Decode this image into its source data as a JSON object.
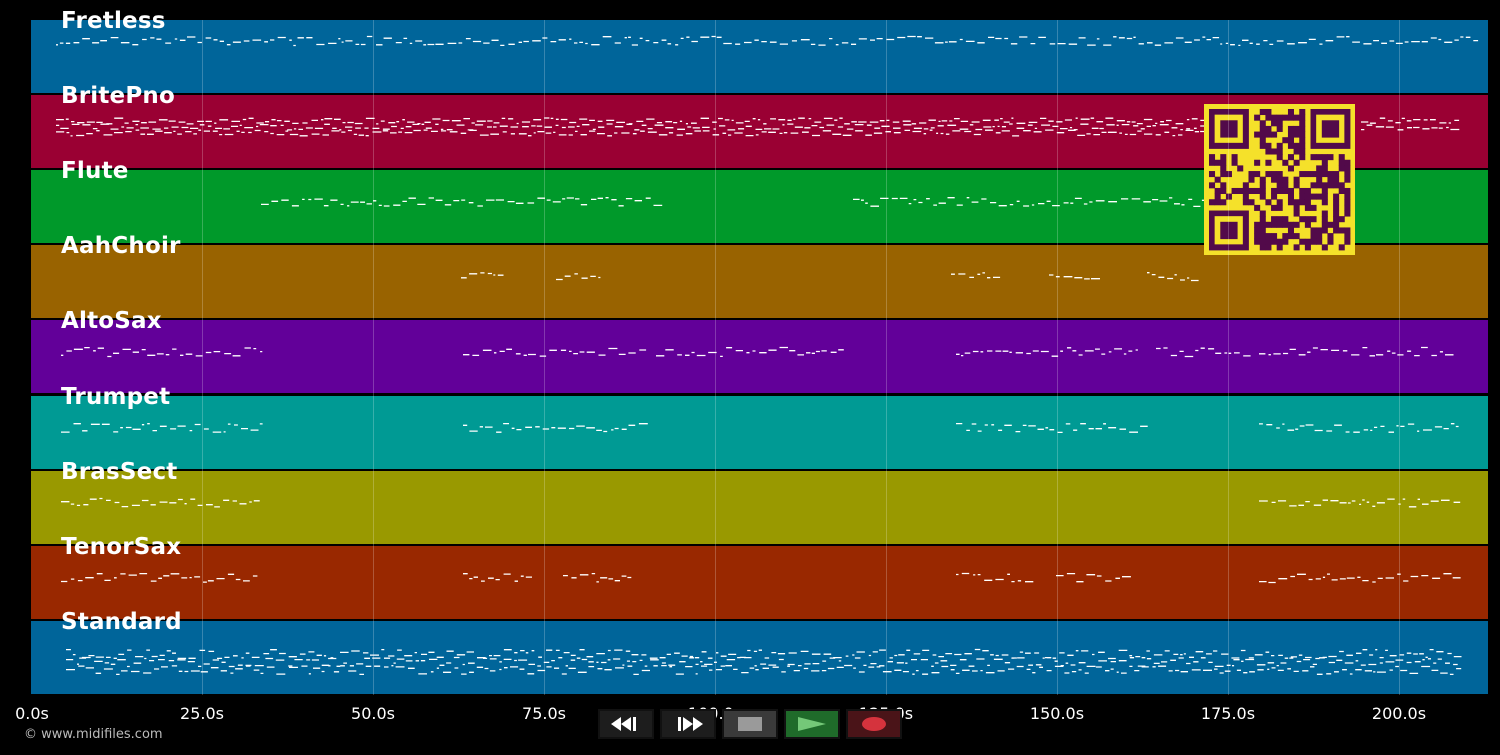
{
  "tracks": [
    {
      "name": "Fretless",
      "color": "#00659a"
    },
    {
      "name": "BritePno",
      "color": "#9a0033"
    },
    {
      "name": "Flute",
      "color": "#00992a"
    },
    {
      "name": "AahChoir",
      "color": "#996300"
    },
    {
      "name": "AltoSax",
      "color": "#620099"
    },
    {
      "name": "Trumpet",
      "color": "#009a94"
    },
    {
      "name": "BrasSect",
      "color": "#999900"
    },
    {
      "name": "TenorSax",
      "color": "#992800"
    },
    {
      "name": "Standard",
      "color": "#00659a"
    }
  ],
  "timeline": {
    "ticks": [
      "0.0s",
      "25.0s",
      "50.0s",
      "75.0s",
      "100.0s",
      "125.0s",
      "150.0s",
      "175.0s",
      "200.0s"
    ],
    "tick_seconds": [
      0,
      25,
      50,
      75,
      100,
      125,
      150,
      175,
      200
    ],
    "max_seconds": 213
  },
  "copyright": "© www.midifiles.com",
  "transport": {
    "rewind": "rewind-icon",
    "fast_forward": "fast-forward-icon",
    "stop": "stop-icon",
    "play": "play-icon",
    "record": "record-icon"
  },
  "qr": {
    "color_fg": "#520a4a",
    "color_bg": "#f5e12a"
  }
}
